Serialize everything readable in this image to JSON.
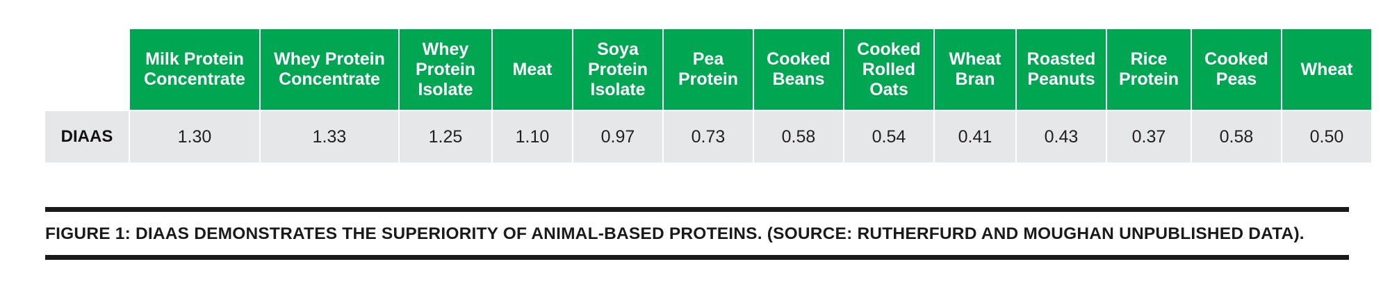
{
  "chart_data": {
    "type": "table",
    "row_label": "DIAAS",
    "categories": [
      "Milk Protein Concentrate",
      "Whey Protein Concentrate",
      "Whey Protein Isolate",
      "Meat",
      "Soya Protein Isolate",
      "Pea Protein",
      "Cooked Beans",
      "Cooked Rolled Oats",
      "Wheat Bran",
      "Roasted Peanuts",
      "Rice Protein",
      "Cooked Peas",
      "Wheat"
    ],
    "values": [
      1.3,
      1.33,
      1.25,
      1.1,
      0.97,
      0.73,
      0.58,
      0.54,
      0.41,
      0.43,
      0.37,
      0.58,
      0.5
    ],
    "display_values": [
      "1.30",
      "1.33",
      "1.25",
      "1.10",
      "0.97",
      "0.73",
      "0.58",
      "0.54",
      "0.41",
      "0.43",
      "0.37",
      "0.58",
      "0.50"
    ],
    "header_lines": [
      [
        "Milk Protein",
        "Concentrate"
      ],
      [
        "Whey Protein",
        "Concentrate"
      ],
      [
        "Whey",
        "Protein",
        "Isolate"
      ],
      [
        "Meat"
      ],
      [
        "Soya",
        "Protein",
        "Isolate"
      ],
      [
        "Pea",
        "Protein"
      ],
      [
        "Cooked",
        "Beans"
      ],
      [
        "Cooked",
        "Rolled",
        "Oats"
      ],
      [
        "Wheat",
        "Bran"
      ],
      [
        "Roasted",
        "Peanuts"
      ],
      [
        "Rice",
        "Protein"
      ],
      [
        "Cooked",
        "Peas"
      ],
      [
        "Wheat"
      ]
    ],
    "caption": "FIGURE 1: DIAAS DEMONSTRATES THE SUPERIORITY OF ANIMAL-BASED PROTEINS. (SOURCE: RUTHERFURD AND MOUGHAN UNPUBLISHED DATA).",
    "colors": {
      "header_bg": "#00a652",
      "header_text": "#ffffff",
      "row_bg": "#e6e7e8",
      "rule": "#1a1a1a"
    }
  }
}
